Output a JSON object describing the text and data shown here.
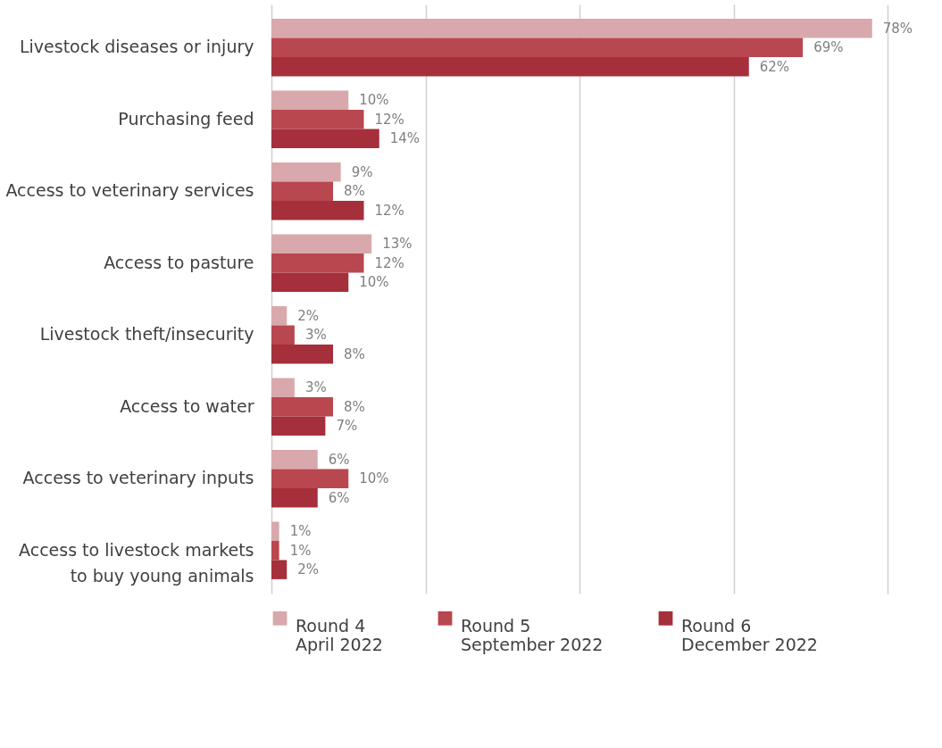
{
  "chart_data": {
    "type": "bar",
    "orientation": "horizontal",
    "categories": [
      "Livestock diseases or injury",
      "Purchasing feed",
      "Access to veterinary services",
      "Access to pasture",
      "Livestock theft/insecurity",
      "Access to water",
      "Access to veterinary inputs",
      "Access to livestock markets\nto buy young animals"
    ],
    "series": [
      {
        "name": "Round 4\nApril 2022",
        "color": "#d9a8ac",
        "values": [
          78,
          10,
          9,
          13,
          2,
          3,
          6,
          1
        ],
        "value_labels": [
          "78%",
          "10%",
          "9%",
          "13%",
          "2%",
          "3%",
          "6%",
          "1%"
        ]
      },
      {
        "name": "Round 5\nSeptember 2022",
        "color": "#b9474f",
        "values": [
          69,
          12,
          8,
          12,
          3,
          8,
          10,
          1
        ],
        "value_labels": [
          "69%",
          "12%",
          "8%",
          "12%",
          "3%",
          "8%",
          "10%",
          "1%"
        ]
      },
      {
        "name": "Round 6\nDecember 2022",
        "color": "#a52f3b",
        "values": [
          62,
          14,
          12,
          10,
          8,
          7,
          6,
          2
        ],
        "value_labels": [
          "62%",
          "14%",
          "12%",
          "10%",
          "8%",
          "7%",
          "6%",
          "2%"
        ]
      }
    ],
    "xlim": [
      0,
      80
    ],
    "xticks": [
      {
        "value": 0,
        "label": null
      },
      {
        "value": 20,
        "label": null
      },
      {
        "value": 40,
        "label": null
      },
      {
        "value": 60,
        "label": null
      },
      {
        "value": 80,
        "label": null
      }
    ],
    "grid": "x",
    "tick_labels": "y",
    "legend": "bottom"
  }
}
